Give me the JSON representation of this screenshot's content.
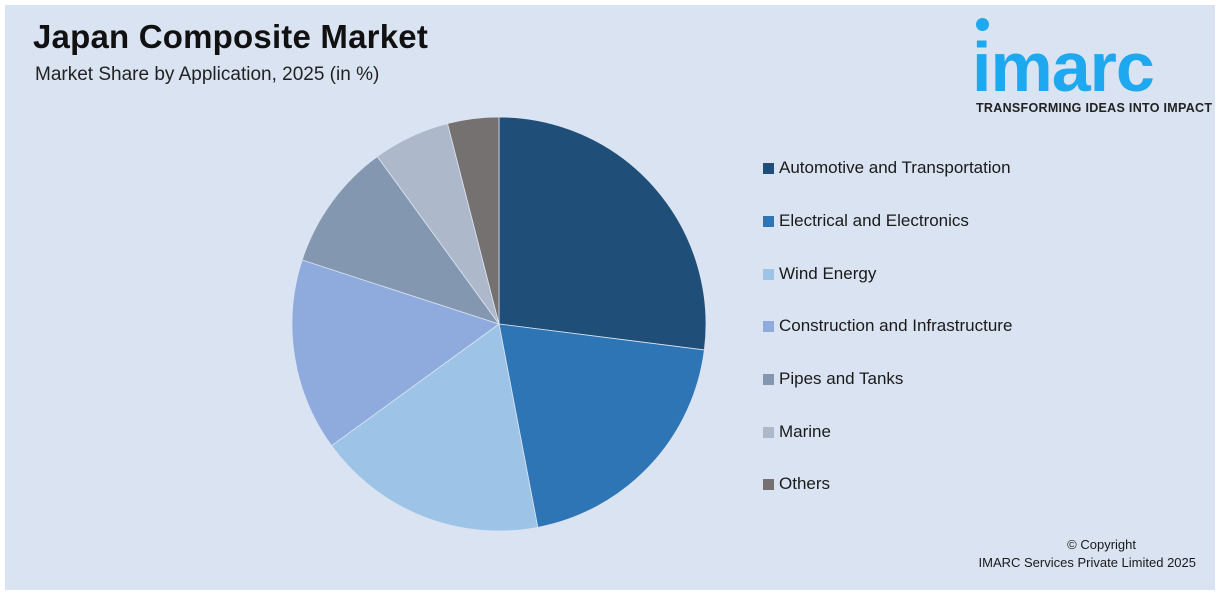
{
  "header": {
    "title": "Japan Composite Market",
    "subtitle": "Market Share by Application, 2025 (in %)"
  },
  "logo": {
    "text": "imarc",
    "tagline": "TRANSFORMING IDEAS INTO IMPACT",
    "color": "#1ea8f0"
  },
  "footer": {
    "line1": "© Copyright",
    "line2": "IMARC Services Private Limited 2025"
  },
  "chart_data": {
    "type": "pie",
    "title": "Japan Composite Market",
    "subtitle": "Market Share by Application, 2025 (in %)",
    "categories": [
      "Automotive and Transportation",
      "Electrical and Electronics",
      "Wind Energy",
      "Construction and Infrastructure",
      "Pipes and Tanks",
      "Marine",
      "Others"
    ],
    "values": [
      27,
      20,
      18,
      15,
      10,
      6,
      4
    ],
    "colors": [
      "#1f4e79",
      "#2e75b6",
      "#9dc3e6",
      "#8faadc",
      "#8497b0",
      "#adb9ca",
      "#767171"
    ],
    "start_angle": "12 o'clock, clockwise",
    "data_labels": false,
    "legend_position": "right"
  },
  "legend": {
    "items": [
      {
        "label": "Automotive and Transportation",
        "color": "#1f4e79"
      },
      {
        "label": "Electrical and Electronics",
        "color": "#2e75b6"
      },
      {
        "label": "Wind Energy",
        "color": "#9dc3e6"
      },
      {
        "label": "Construction and Infrastructure",
        "color": "#8faadc"
      },
      {
        "label": "Pipes and Tanks",
        "color": "#8497b0"
      },
      {
        "label": "Marine",
        "color": "#adb9ca"
      },
      {
        "label": "Others",
        "color": "#767171"
      }
    ]
  }
}
